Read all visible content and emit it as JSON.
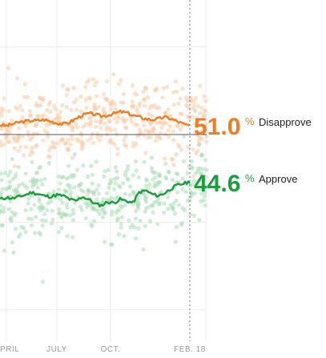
{
  "chart_data": {
    "type": "scatter",
    "title": "",
    "xlabel": "",
    "ylabel": "",
    "x_ticks": [
      "PRIL",
      "JULY",
      "OCT.",
      "FEB. 18"
    ],
    "current_date": "FEB. 18",
    "ylim": [
      30,
      70
    ],
    "reference_line": 50,
    "series": [
      {
        "name": "Disapprove",
        "current_value": "51.0",
        "unit": "%",
        "color": "#f47b20",
        "dot_color": "#fcc9a3",
        "values": [
          51.1,
          51.0,
          51.2,
          51.4,
          51.5,
          51.6,
          51.6,
          51.7,
          51.5,
          51.3,
          51.2,
          51.4,
          51.8,
          52.2,
          52.4,
          52.3,
          52.1,
          52.2,
          52.4,
          52.6,
          52.5,
          52.2,
          52.0,
          51.8,
          51.7,
          51.8,
          52.0,
          51.8,
          51.5,
          51.2,
          51.0
        ]
      },
      {
        "name": "Approve",
        "current_value": "44.6",
        "unit": "%",
        "color": "#1a9f3a",
        "dot_color": "#a8dcb5",
        "values": [
          42.6,
          42.8,
          42.7,
          42.9,
          43.1,
          43.4,
          43.2,
          43.0,
          42.9,
          43.1,
          43.0,
          42.6,
          42.4,
          42.9,
          42.6,
          42.1,
          41.9,
          42.3,
          42.2,
          42.6,
          42.4,
          42.2,
          43.4,
          43.6,
          43.2,
          43.0,
          43.3,
          43.8,
          44.2,
          44.4,
          44.6
        ]
      }
    ]
  }
}
